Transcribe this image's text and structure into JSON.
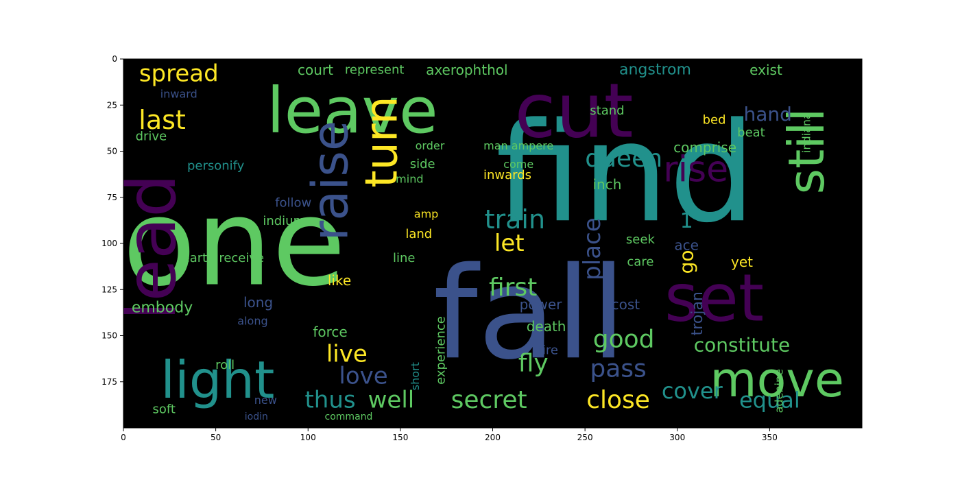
{
  "chart_data": {
    "type": "heatmap",
    "title": "",
    "xlabel": "",
    "ylabel": "",
    "xlim": [
      0,
      400
    ],
    "ylim": [
      200,
      0
    ],
    "xticks": [
      "0",
      "50",
      "100",
      "150",
      "200",
      "250",
      "300",
      "350"
    ],
    "yticks": [
      "0",
      "25",
      "50",
      "75",
      "100",
      "125",
      "150",
      "175"
    ],
    "background": "#000000",
    "palette": [
      "#440154",
      "#3b528b",
      "#21918c",
      "#5ec962",
      "#fde725"
    ],
    "words": [
      {
        "text": "find",
        "x": 272,
        "y": 62,
        "color": "#21918c"
      },
      {
        "text": "fall",
        "x": 220,
        "y": 138,
        "color": "#3b528b"
      },
      {
        "text": "one",
        "x": 60,
        "y": 100,
        "color": "#5ec962"
      },
      {
        "text": "leave",
        "x": 124,
        "y": 28,
        "color": "#5ec962"
      },
      {
        "text": "cut",
        "x": 244,
        "y": 28,
        "color": "#440154"
      },
      {
        "text": "lead",
        "x": 15,
        "y": 102,
        "color": "#440154"
      },
      {
        "text": "set",
        "x": 320,
        "y": 130,
        "color": "#440154"
      },
      {
        "text": "light",
        "x": 51,
        "y": 174,
        "color": "#21918c"
      },
      {
        "text": "move",
        "x": 354,
        "y": 174,
        "color": "#5ec962"
      },
      {
        "text": "still",
        "x": 370,
        "y": 50,
        "color": "#5ec962"
      },
      {
        "text": "raise",
        "x": 112,
        "y": 66,
        "color": "#3b528b"
      },
      {
        "text": "turn",
        "x": 140,
        "y": 45,
        "color": "#fde725"
      },
      {
        "text": "rise",
        "x": 310,
        "y": 60,
        "color": "#440154"
      },
      {
        "text": "spread",
        "x": 30,
        "y": 8,
        "color": "#fde725"
      },
      {
        "text": "last",
        "x": 21,
        "y": 33,
        "color": "#fde725"
      },
      {
        "text": "queen",
        "x": 271,
        "y": 54,
        "color": "#21918c"
      },
      {
        "text": "train",
        "x": 212,
        "y": 87,
        "color": "#21918c"
      },
      {
        "text": "let",
        "x": 209,
        "y": 100,
        "color": "#fde725"
      },
      {
        "text": "first",
        "x": 211,
        "y": 124,
        "color": "#5ec962"
      },
      {
        "text": "good",
        "x": 271,
        "y": 152,
        "color": "#5ec962"
      },
      {
        "text": "live",
        "x": 121,
        "y": 160,
        "color": "#fde725"
      },
      {
        "text": "love",
        "x": 130,
        "y": 172,
        "color": "#3b528b"
      },
      {
        "text": "pass",
        "x": 268,
        "y": 168,
        "color": "#3b528b"
      },
      {
        "text": "fly",
        "x": 222,
        "y": 165,
        "color": "#5ec962"
      },
      {
        "text": "thus",
        "x": 112,
        "y": 185,
        "color": "#21918c"
      },
      {
        "text": "well",
        "x": 145,
        "y": 185,
        "color": "#5ec962"
      },
      {
        "text": "secret",
        "x": 198,
        "y": 185,
        "color": "#5ec962"
      },
      {
        "text": "close",
        "x": 268,
        "y": 185,
        "color": "#fde725"
      },
      {
        "text": "cover",
        "x": 308,
        "y": 180,
        "color": "#21918c"
      },
      {
        "text": "equal",
        "x": 350,
        "y": 185,
        "color": "#21918c"
      },
      {
        "text": "constitute",
        "x": 335,
        "y": 155,
        "color": "#5ec962"
      },
      {
        "text": "hand",
        "x": 349,
        "y": 30,
        "color": "#3b528b"
      },
      {
        "text": "angstrom",
        "x": 288,
        "y": 6,
        "color": "#21918c"
      },
      {
        "text": "axerophthol",
        "x": 186,
        "y": 6,
        "color": "#5ec962"
      },
      {
        "text": "represent",
        "x": 136,
        "y": 6,
        "color": "#5ec962"
      },
      {
        "text": "court",
        "x": 104,
        "y": 6,
        "color": "#5ec962"
      },
      {
        "text": "exist",
        "x": 348,
        "y": 6,
        "color": "#5ec962"
      },
      {
        "text": "place",
        "x": 254,
        "y": 103,
        "color": "#3b528b"
      },
      {
        "text": "go",
        "x": 305,
        "y": 110,
        "color": "#fde725"
      },
      {
        "text": "1",
        "x": 305,
        "y": 88,
        "color": "#21918c"
      },
      {
        "text": "ace",
        "x": 305,
        "y": 101,
        "color": "#3b528b"
      },
      {
        "text": "indiana",
        "x": 370,
        "y": 40,
        "color": "#5ec962"
      },
      {
        "text": "beat",
        "x": 340,
        "y": 40,
        "color": "#5ec962"
      },
      {
        "text": "bed",
        "x": 320,
        "y": 33,
        "color": "#fde725"
      },
      {
        "text": "stand",
        "x": 262,
        "y": 28,
        "color": "#5ec962"
      },
      {
        "text": "comprise",
        "x": 315,
        "y": 48,
        "color": "#5ec962"
      },
      {
        "text": "inch",
        "x": 262,
        "y": 68,
        "color": "#5ec962"
      },
      {
        "text": "personify",
        "x": 50,
        "y": 58,
        "color": "#21918c"
      },
      {
        "text": "follow",
        "x": 92,
        "y": 78,
        "color": "#3b528b"
      },
      {
        "text": "indium",
        "x": 87,
        "y": 88,
        "color": "#5ec962"
      },
      {
        "text": "earth receive",
        "x": 54,
        "y": 108,
        "color": "#5ec962"
      },
      {
        "text": "drive",
        "x": 15,
        "y": 42,
        "color": "#5ec962"
      },
      {
        "text": "inward",
        "x": 30,
        "y": 19,
        "color": "#3b528b"
      },
      {
        "text": "embody",
        "x": 21,
        "y": 135,
        "color": "#5ec962"
      },
      {
        "text": "long",
        "x": 73,
        "y": 132,
        "color": "#3b528b"
      },
      {
        "text": "along",
        "x": 70,
        "y": 142,
        "color": "#3b528b"
      },
      {
        "text": "force",
        "x": 112,
        "y": 148,
        "color": "#5ec962"
      },
      {
        "text": "roll",
        "x": 55,
        "y": 166,
        "color": "#5ec962"
      },
      {
        "text": "new",
        "x": 77,
        "y": 185,
        "color": "#3b528b"
      },
      {
        "text": "iodin",
        "x": 72,
        "y": 194,
        "color": "#3b528b"
      },
      {
        "text": "soft",
        "x": 22,
        "y": 190,
        "color": "#5ec962"
      },
      {
        "text": "like",
        "x": 117,
        "y": 120,
        "color": "#fde725"
      },
      {
        "text": "line",
        "x": 152,
        "y": 108,
        "color": "#5ec962"
      },
      {
        "text": "land",
        "x": 160,
        "y": 95,
        "color": "#fde725"
      },
      {
        "text": "amp",
        "x": 164,
        "y": 84,
        "color": "#fde725"
      },
      {
        "text": "mind",
        "x": 155,
        "y": 65,
        "color": "#5ec962"
      },
      {
        "text": "side",
        "x": 162,
        "y": 57,
        "color": "#5ec962"
      },
      {
        "text": "order",
        "x": 166,
        "y": 47,
        "color": "#5ec962"
      },
      {
        "text": "man ampere",
        "x": 214,
        "y": 47,
        "color": "#5ec962"
      },
      {
        "text": "come",
        "x": 214,
        "y": 57,
        "color": "#5ec962"
      },
      {
        "text": "inwards",
        "x": 208,
        "y": 63,
        "color": "#fde725"
      },
      {
        "text": "power",
        "x": 226,
        "y": 133,
        "color": "#3b528b"
      },
      {
        "text": "death",
        "x": 229,
        "y": 145,
        "color": "#5ec962"
      },
      {
        "text": "fire",
        "x": 230,
        "y": 158,
        "color": "#3b528b"
      },
      {
        "text": "cost",
        "x": 272,
        "y": 133,
        "color": "#3b528b"
      },
      {
        "text": "care",
        "x": 280,
        "y": 110,
        "color": "#5ec962"
      },
      {
        "text": "seek",
        "x": 280,
        "y": 98,
        "color": "#5ec962"
      },
      {
        "text": "yet",
        "x": 335,
        "y": 110,
        "color": "#fde725"
      },
      {
        "text": "trojan",
        "x": 311,
        "y": 138,
        "color": "#3b528b"
      },
      {
        "text": "adenine",
        "x": 355,
        "y": 180,
        "color": "#5ec962"
      },
      {
        "text": "experience",
        "x": 172,
        "y": 158,
        "color": "#5ec962"
      },
      {
        "text": "short",
        "x": 158,
        "y": 172,
        "color": "#21918c"
      },
      {
        "text": "command",
        "x": 122,
        "y": 194,
        "color": "#5ec962"
      }
    ]
  }
}
